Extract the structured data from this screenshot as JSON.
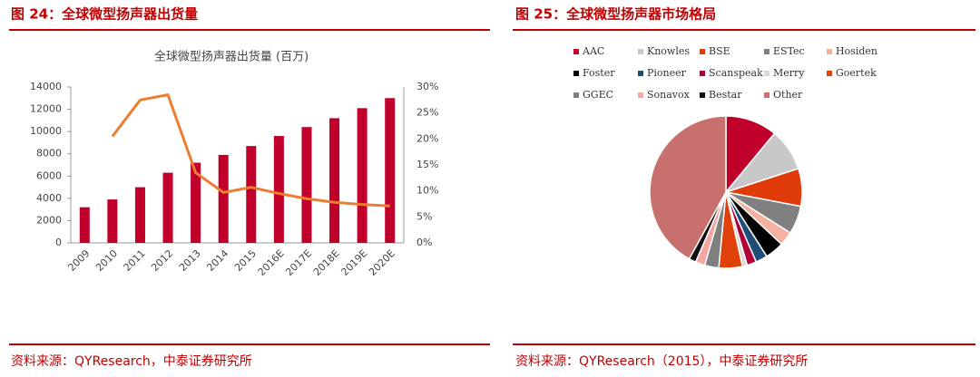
{
  "chart_data": [
    {
      "type": "bar",
      "caption": "图 24：全球微型扬声器出货量",
      "title": "全球微型扬声器出货量 (百万)",
      "source": "资料来源：QYResearch，中泰证券研究所",
      "categories": [
        "2009",
        "2010",
        "2011",
        "2012",
        "2013",
        "2014",
        "2015",
        "2016E",
        "2017E",
        "2018E",
        "2019E",
        "2020E"
      ],
      "series": [
        {
          "type": "bar",
          "color": "#c0002b",
          "values": [
            3200,
            3900,
            5000,
            6300,
            7200,
            7900,
            8700,
            9600,
            10400,
            11200,
            12100,
            13000
          ]
        },
        {
          "type": "line",
          "axis": "y2",
          "color": "#ed7d31",
          "values": [
            null,
            20.5,
            27.5,
            28.5,
            13.5,
            9.7,
            10.7,
            9.5,
            8.5,
            7.8,
            7.4,
            7.1
          ]
        }
      ],
      "ylim": [
        0,
        14000
      ],
      "yticks": [
        0,
        2000,
        4000,
        6000,
        8000,
        10000,
        12000,
        14000
      ],
      "y2lim": [
        0,
        30
      ],
      "y2ticks": [
        {
          "value": 0,
          "label": "0%"
        },
        {
          "value": 5,
          "label": "5%"
        },
        {
          "value": 10,
          "label": "10%"
        },
        {
          "value": 15,
          "label": "15%"
        },
        {
          "value": 20,
          "label": "20%"
        },
        {
          "value": 25,
          "label": "25%"
        },
        {
          "value": 30,
          "label": "30%"
        }
      ]
    },
    {
      "type": "pie",
      "caption": "图 25：全球微型扬声器市场格局",
      "source": "资料来源：QYResearch（2015），中泰证券研究所",
      "categories": [
        "AAC",
        "Knowles",
        "BSE",
        "ESTec",
        "Hosiden",
        "Foster",
        "Pioneer",
        "Scanspeak",
        "Merry",
        "Goertek",
        "GGEC",
        "Sonavox",
        "Bestar",
        "Other"
      ],
      "values": [
        11,
        9,
        8,
        6,
        3,
        4,
        2.5,
        2,
        1,
        5,
        3,
        2,
        1.5,
        42
      ],
      "colors": [
        "#c0002b",
        "#c8c8c8",
        "#e03c0a",
        "#808080",
        "#f5b1a0",
        "#000000",
        "#1f4e79",
        "#b0003a",
        "#d9d9d9",
        "#e0400a",
        "#7f7f7f",
        "#f4a6a0",
        "#111111",
        "#c8706e"
      ]
    }
  ]
}
